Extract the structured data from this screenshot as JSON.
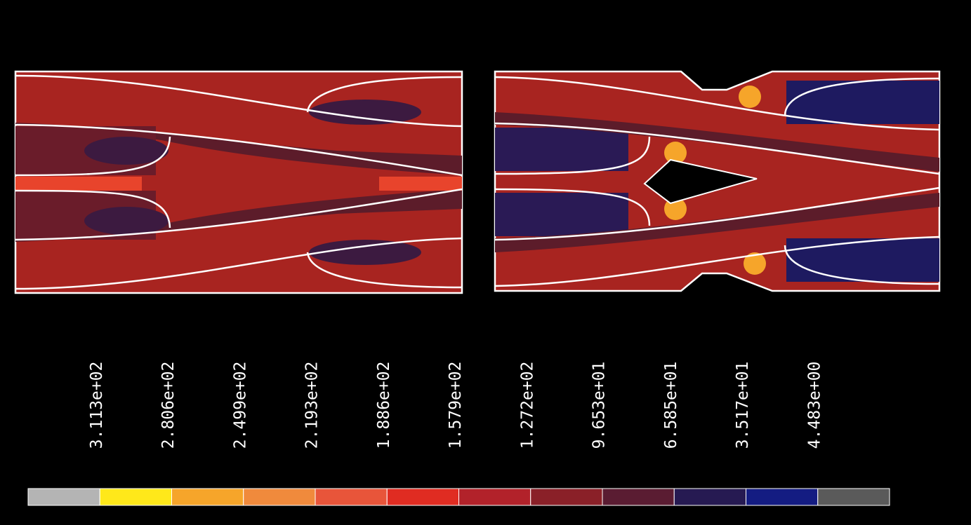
{
  "legend": {
    "labels": [
      "3.113e+02",
      "2.806e+02",
      "2.499e+02",
      "2.193e+02",
      "1.886e+02",
      "1.579e+02",
      "1.272e+02",
      "9.653e+01",
      "6.585e+01",
      "3.517e+01",
      "4.483e+00"
    ],
    "colors": [
      "#b4b4b4",
      "#ffe81a",
      "#f6a52a",
      "#f08a3c",
      "#e8553a",
      "#e02c22",
      "#b2222a",
      "#8a2028",
      "#5a1c32",
      "#261a52",
      "#141c82",
      "#5a5a5a"
    ]
  }
}
